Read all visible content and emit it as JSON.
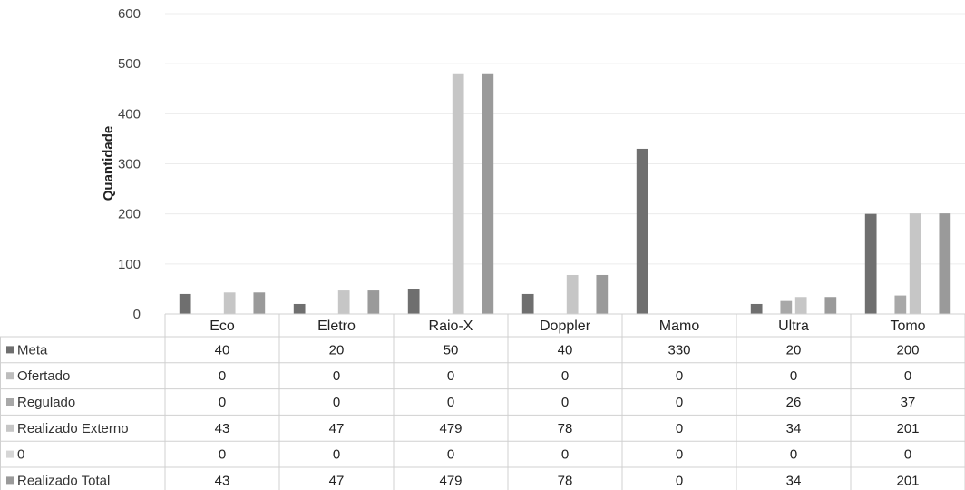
{
  "chart_data": {
    "type": "bar",
    "ylabel": "Quantidade",
    "ylim": [
      0,
      600
    ],
    "yticks": [
      0,
      100,
      200,
      300,
      400,
      500,
      600
    ],
    "legend": "data-table-below",
    "categories": [
      "Eco",
      "Eletro",
      "Raio-X",
      "Doppler",
      "Mamo",
      "Ultra",
      "Tomo"
    ],
    "series": [
      {
        "name": "Meta",
        "color": "#6f6f6f",
        "values": [
          40,
          20,
          50,
          40,
          330,
          20,
          200
        ]
      },
      {
        "name": "Ofertado",
        "color": "#bdbdbd",
        "values": [
          0,
          0,
          0,
          0,
          0,
          0,
          0
        ]
      },
      {
        "name": "Regulado",
        "color": "#a8a8a8",
        "values": [
          0,
          0,
          0,
          0,
          0,
          26,
          37
        ]
      },
      {
        "name": "Realizado Externo",
        "color": "#c6c6c6",
        "values": [
          43,
          47,
          479,
          78,
          0,
          34,
          201
        ]
      },
      {
        "name": "0",
        "color": "#d6d6d6",
        "values": [
          0,
          0,
          0,
          0,
          0,
          0,
          0
        ]
      },
      {
        "name": "Realizado Total",
        "color": "#9a9a9a",
        "values": [
          43,
          47,
          479,
          78,
          0,
          34,
          201
        ]
      }
    ],
    "table_values": [
      [
        "40",
        "20",
        "50",
        "40",
        "330",
        "20",
        "200"
      ],
      [
        "0",
        "0",
        "0",
        "0",
        "0",
        "0",
        "0"
      ],
      [
        "0",
        "0",
        "0",
        "0",
        "0",
        "26",
        "37"
      ],
      [
        "43",
        "47",
        "479",
        "78",
        "0",
        "34",
        "201"
      ],
      [
        "0",
        "0",
        "0",
        "0",
        "0",
        "0",
        "0"
      ],
      [
        "43",
        "47",
        "479",
        "78",
        "0",
        "34",
        "201"
      ]
    ]
  }
}
